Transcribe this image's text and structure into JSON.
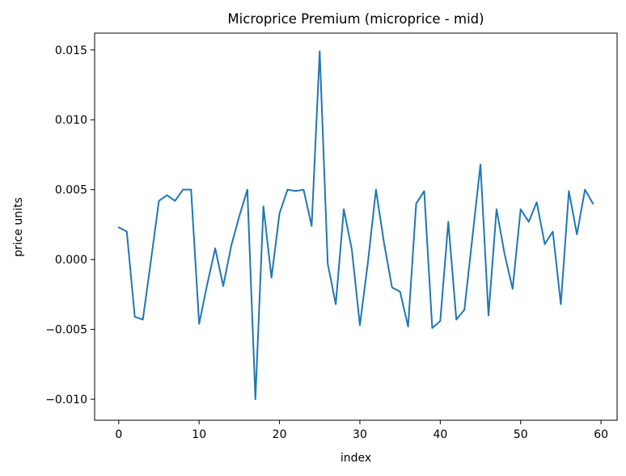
{
  "chart_data": {
    "type": "line",
    "title": "Microprice Premium (microprice - mid)",
    "xlabel": "index",
    "ylabel": "price units",
    "xlim": [
      -3,
      62
    ],
    "ylim": [
      -0.0115,
      0.0162
    ],
    "xticks": [
      0,
      10,
      20,
      30,
      40,
      50,
      60
    ],
    "xtick_labels": [
      "0",
      "10",
      "20",
      "30",
      "40",
      "50",
      "60"
    ],
    "yticks": [
      -0.01,
      -0.005,
      0.0,
      0.005,
      0.01,
      0.015
    ],
    "ytick_labels": [
      "−0.010",
      "−0.005",
      "0.000",
      "0.005",
      "0.010",
      "0.015"
    ],
    "grid": false,
    "line_color": "#1f77b4",
    "x": [
      0,
      1,
      2,
      3,
      4,
      5,
      6,
      7,
      8,
      9,
      10,
      11,
      12,
      13,
      14,
      15,
      16,
      17,
      18,
      19,
      20,
      21,
      22,
      23,
      24,
      25,
      26,
      27,
      28,
      29,
      30,
      31,
      32,
      33,
      34,
      35,
      36,
      37,
      38,
      39,
      40,
      41,
      42,
      43,
      44,
      45,
      46,
      47,
      48,
      49,
      50,
      51,
      52,
      53,
      54,
      55,
      56,
      57,
      58,
      59
    ],
    "y": [
      0.0023,
      0.002,
      -0.0041,
      -0.0043,
      -0.0001,
      0.0042,
      0.0046,
      0.0042,
      0.005,
      0.005,
      -0.0046,
      -0.0018,
      0.0008,
      -0.0019,
      0.001,
      0.0031,
      0.005,
      -0.01,
      0.0038,
      -0.0013,
      0.0033,
      0.005,
      0.0049,
      0.005,
      0.0024,
      0.0149,
      -0.0003,
      -0.0032,
      0.0036,
      0.0007,
      -0.0047,
      -0.0002,
      0.005,
      0.0012,
      -0.002,
      -0.0023,
      -0.0048,
      0.004,
      0.0049,
      -0.0049,
      -0.0044,
      0.0027,
      -0.0043,
      -0.0036,
      0.0016,
      0.0068,
      -0.004,
      0.0036,
      0.0004,
      -0.0021,
      0.0036,
      0.0027,
      0.0041,
      0.0011,
      0.002,
      -0.0032,
      0.0049,
      0.0018,
      0.005,
      0.004
    ]
  }
}
